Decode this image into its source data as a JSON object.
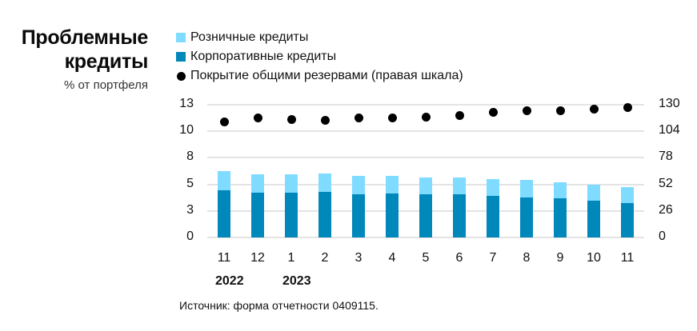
{
  "header": {
    "title_line1": "Проблемные",
    "title_line2": "кредиты",
    "subtitle": "% от портфеля"
  },
  "legend": {
    "items": [
      {
        "label": "Розничные кредиты",
        "color": "#7FDBFF",
        "shape": "square"
      },
      {
        "label": "Корпоративные кредиты",
        "color": "#0088BB",
        "shape": "square"
      },
      {
        "label": "Покрытие общими резервами (правая шкала)",
        "color": "#000000",
        "shape": "circle"
      }
    ]
  },
  "axes": {
    "left_ticks": [
      "0",
      "3",
      "5",
      "8",
      "10",
      "13"
    ],
    "right_ticks": [
      "0",
      "26",
      "52",
      "78",
      "104",
      "130"
    ],
    "x_ticks": [
      "11",
      "12",
      "1",
      "2",
      "3",
      "4",
      "5",
      "6",
      "7",
      "8",
      "9",
      "10",
      "11"
    ],
    "years": [
      {
        "label": "2022",
        "at_index": 0
      },
      {
        "label": "2023",
        "at_index": 2
      }
    ]
  },
  "source": "Источник: форма отчетности 0409115.",
  "chart_data": {
    "type": "bar",
    "title": "Проблемные кредиты",
    "subtitle": "% от портфеля",
    "stacked": true,
    "categories": [
      "11.2022",
      "12.2022",
      "1.2023",
      "2.2023",
      "3.2023",
      "4.2023",
      "5.2023",
      "6.2023",
      "7.2023",
      "8.2023",
      "9.2023",
      "10.2023",
      "11.2023"
    ],
    "series": [
      {
        "name": "Корпоративные кредиты",
        "type": "bar",
        "axis": "left",
        "color": "#0088BB",
        "values": [
          4.6,
          4.4,
          4.4,
          4.5,
          4.2,
          4.3,
          4.2,
          4.2,
          4.1,
          3.9,
          3.8,
          3.6,
          3.4
        ]
      },
      {
        "name": "Розничные кредиты",
        "type": "bar",
        "axis": "left",
        "color": "#7FDBFF",
        "values": [
          1.9,
          1.8,
          1.8,
          1.8,
          1.8,
          1.7,
          1.7,
          1.7,
          1.6,
          1.7,
          1.6,
          1.6,
          1.5
        ]
      },
      {
        "name": "Покрытие общими резервами (правая шкала)",
        "type": "scatter",
        "axis": "right",
        "color": "#000000",
        "values": [
          113.5,
          116.7,
          115.9,
          115.1,
          116.7,
          116.7,
          117.5,
          119.8,
          122.2,
          124.5,
          124.5,
          126.0,
          127.6
        ]
      }
    ],
    "xlabel": "",
    "ylabel": "",
    "ylim": [
      0,
      13
    ],
    "y2lim": [
      0,
      130
    ],
    "yticks": [
      0,
      2.6,
      5.2,
      7.8,
      10.4,
      13
    ],
    "ytick_labels": [
      "0",
      "3",
      "5",
      "8",
      "10",
      "13"
    ],
    "y2ticks": [
      0,
      26,
      52,
      78,
      104,
      130
    ],
    "grid": true,
    "legend_position": "top"
  }
}
